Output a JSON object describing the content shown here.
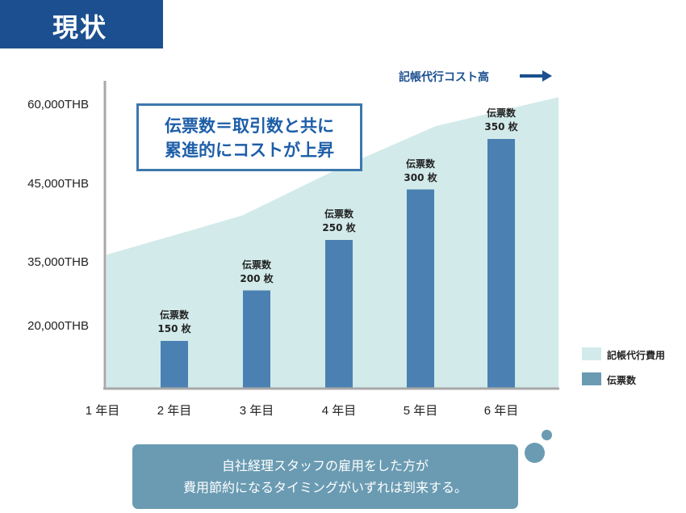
{
  "header": {
    "title": "現状"
  },
  "callout": {
    "line1": "伝票数＝取引数と共に",
    "line2": "累進的にコストが上昇"
  },
  "annotation": {
    "cost_arrow_label": "記帳代行コスト高"
  },
  "legend": {
    "area_label": "記帳代行費用",
    "bar_label": "伝票数",
    "area_color": "#d2eaea",
    "bar_color": "#4a81b2"
  },
  "bubble": {
    "line1": "自社経理スタッフの雇用をした方が",
    "line2": "費用節約になるタイミングがいずれは到来する。"
  },
  "chart_data": {
    "type": "bar",
    "categories": [
      "1 年目",
      "2 年目",
      "3 年目",
      "4 年目",
      "5 年目",
      "6 年目"
    ],
    "y_ticks": [
      "20,000THB",
      "35,000THB",
      "45,000THB",
      "60,000THB"
    ],
    "series": [
      {
        "name": "伝票数",
        "type": "bar",
        "values": [
          null,
          150,
          200,
          250,
          300,
          350
        ],
        "labels": [
          "",
          "伝票数\n150 枚",
          "伝票数\n200 枚",
          "伝票数\n250 枚",
          "伝票数\n300 枚",
          "伝票数\n350 枚"
        ]
      },
      {
        "name": "記帳代行費用",
        "type": "area",
        "values": [
          36000,
          38500,
          41000,
          48000,
          56000,
          61500
        ]
      }
    ]
  }
}
